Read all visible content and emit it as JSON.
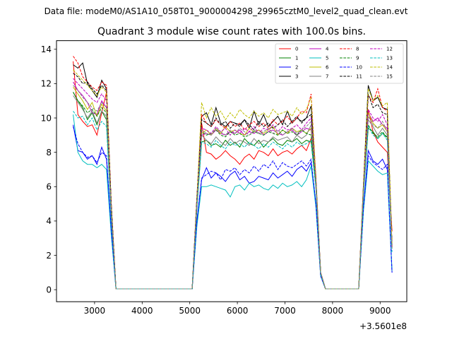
{
  "chart_data": {
    "type": "line",
    "suptitle": "Data file: modeM0/AS1A10_058T01_9000004298_29965cztM0_level2_quad_clean.evt",
    "title": "Quadrant 3 module wise count rates with 100.0s bins.",
    "xlabel": "",
    "ylabel": "",
    "x_offset_label": "+3.5601e8",
    "xlim": [
      2200,
      9560
    ],
    "ylim": [
      -0.7,
      14.5
    ],
    "xticks": [
      3000,
      4000,
      5000,
      6000,
      7000,
      8000,
      9000
    ],
    "yticks": [
      0,
      2,
      4,
      6,
      8,
      10,
      12,
      14
    ],
    "legend_location": "top-right",
    "x": [
      2550,
      2650,
      2750,
      2850,
      2950,
      3050,
      3150,
      3250,
      3350,
      3450,
      3550,
      5050,
      5150,
      5250,
      5350,
      5450,
      5550,
      5650,
      5750,
      5850,
      5950,
      6050,
      6150,
      6250,
      6350,
      6450,
      6550,
      6650,
      6750,
      6850,
      6950,
      7050,
      7150,
      7250,
      7350,
      7450,
      7550,
      7650,
      7750,
      7850,
      8550,
      8650,
      8750,
      8850,
      8950,
      9050,
      9150,
      9250
    ],
    "series": [
      {
        "name": "0",
        "color": "#ff0000",
        "dash": false,
        "values": [
          13.3,
          10.2,
          9.8,
          9.5,
          9.6,
          9.0,
          10.3,
          11.5,
          5.0,
          0.05,
          0.05,
          0.05,
          5.2,
          9.7,
          8.0,
          7.9,
          7.6,
          7.8,
          8.1,
          7.8,
          7.6,
          7.3,
          7.7,
          7.9,
          7.6,
          8.1,
          8.0,
          7.8,
          8.2,
          7.8,
          8.0,
          8.1,
          7.9,
          8.2,
          8.4,
          8.1,
          8.8,
          6.0,
          1.0,
          0.05,
          0.05,
          6.0,
          10.5,
          9.2,
          8.6,
          8.3,
          8.0,
          3.4
        ]
      },
      {
        "name": "1",
        "color": "#008000",
        "dash": false,
        "values": [
          11.5,
          11.0,
          10.6,
          9.9,
          10.3,
          9.6,
          10.4,
          9.9,
          4.3,
          0.05,
          0.05,
          0.05,
          4.8,
          8.6,
          8.7,
          8.4,
          8.5,
          8.3,
          8.7,
          8.4,
          8.6,
          8.3,
          8.8,
          8.5,
          8.4,
          8.7,
          8.3,
          8.6,
          8.8,
          8.5,
          8.4,
          8.7,
          8.6,
          8.8,
          8.5,
          8.7,
          8.6,
          6.0,
          1.0,
          0.05,
          0.05,
          5.6,
          9.4,
          9.2,
          8.8,
          9.1,
          8.9,
          2.7
        ]
      },
      {
        "name": "2",
        "color": "#0000ff",
        "dash": false,
        "values": [
          9.6,
          8.1,
          8.0,
          7.6,
          7.8,
          7.3,
          8.3,
          7.6,
          3.5,
          0.05,
          0.05,
          0.05,
          4.0,
          6.4,
          7.1,
          6.5,
          6.8,
          6.6,
          6.3,
          6.7,
          6.9,
          6.4,
          6.6,
          6.2,
          6.3,
          6.6,
          6.5,
          6.4,
          6.8,
          6.5,
          6.7,
          6.9,
          6.6,
          7.0,
          7.2,
          6.9,
          7.4,
          5.0,
          0.8,
          0.05,
          0.05,
          4.8,
          8.1,
          7.5,
          7.3,
          7.6,
          7.0,
          1.0
        ]
      },
      {
        "name": "3",
        "color": "#000000",
        "dash": false,
        "values": [
          13.1,
          12.9,
          13.2,
          12.0,
          11.6,
          11.2,
          12.2,
          11.7,
          5.0,
          0.05,
          0.05,
          0.05,
          5.4,
          10.1,
          10.3,
          9.6,
          10.6,
          9.7,
          9.5,
          9.8,
          9.7,
          9.6,
          9.9,
          9.4,
          10.4,
          9.6,
          10.2,
          9.5,
          9.8,
          10.1,
          9.6,
          10.4,
          9.7,
          10.0,
          9.8,
          10.0,
          10.7,
          6.5,
          1.0,
          0.05,
          0.05,
          6.2,
          11.9,
          11.0,
          11.2,
          10.6,
          10.5,
          2.5
        ]
      },
      {
        "name": "4",
        "color": "#bf00bf",
        "dash": false,
        "values": [
          12.1,
          11.6,
          11.3,
          10.9,
          10.3,
          10.2,
          11.0,
          10.6,
          4.6,
          0.05,
          0.05,
          0.05,
          5.0,
          9.0,
          9.1,
          9.0,
          9.3,
          9.1,
          9.0,
          9.2,
          9.1,
          9.3,
          9.0,
          9.2,
          9.1,
          9.3,
          9.0,
          9.2,
          9.3,
          9.1,
          9.0,
          9.2,
          9.3,
          9.0,
          9.2,
          9.4,
          9.3,
          6.2,
          1.0,
          0.05,
          0.05,
          5.9,
          10.3,
          9.8,
          10.0,
          9.6,
          9.4,
          2.6
        ]
      },
      {
        "name": "5",
        "color": "#00bfbf",
        "dash": false,
        "values": [
          10.2,
          8.0,
          7.5,
          7.3,
          7.3,
          7.1,
          7.3,
          7.0,
          3.2,
          0.05,
          0.05,
          0.05,
          3.7,
          6.0,
          6.0,
          6.1,
          6.0,
          5.9,
          5.8,
          5.4,
          6.0,
          6.1,
          5.8,
          6.2,
          6.0,
          6.1,
          5.9,
          5.8,
          6.1,
          5.9,
          6.2,
          6.0,
          6.1,
          6.3,
          6.0,
          6.4,
          7.2,
          4.8,
          0.8,
          0.05,
          0.05,
          4.6,
          7.5,
          7.2,
          6.9,
          6.7,
          6.8,
          1.1
        ]
      },
      {
        "name": "6",
        "color": "#bfbf00",
        "dash": false,
        "values": [
          11.8,
          11.4,
          11.0,
          10.5,
          10.9,
          10.1,
          10.8,
          10.4,
          4.6,
          0.05,
          0.05,
          0.05,
          5.0,
          9.1,
          9.3,
          9.0,
          9.4,
          9.1,
          9.5,
          9.2,
          9.3,
          9.1,
          9.0,
          9.4,
          9.2,
          9.3,
          9.1,
          9.3,
          9.5,
          9.0,
          9.3,
          9.1,
          9.4,
          9.2,
          9.3,
          9.1,
          9.4,
          6.3,
          1.0,
          0.05,
          0.05,
          5.9,
          10.3,
          9.7,
          9.4,
          9.6,
          9.2,
          2.4
        ]
      },
      {
        "name": "7",
        "color": "#808080",
        "dash": false,
        "values": [
          11.3,
          10.9,
          10.5,
          10.0,
          10.4,
          9.7,
          10.4,
          10.1,
          4.4,
          0.05,
          0.05,
          0.05,
          4.9,
          9.0,
          8.7,
          8.5,
          8.9,
          8.6,
          8.4,
          8.8,
          8.5,
          8.7,
          8.6,
          8.4,
          8.8,
          8.5,
          8.7,
          8.6,
          8.9,
          8.7,
          8.8,
          8.9,
          8.6,
          9.0,
          8.8,
          9.0,
          9.6,
          6.2,
          1.0,
          0.05,
          0.05,
          5.8,
          9.9,
          9.5,
          9.0,
          9.4,
          9.0,
          2.4
        ]
      },
      {
        "name": "8",
        "color": "#ff0000",
        "dash": true,
        "values": [
          13.6,
          13.2,
          12.4,
          12.1,
          11.8,
          11.6,
          12.1,
          11.9,
          5.0,
          0.05,
          0.05,
          0.05,
          5.4,
          10.2,
          9.7,
          9.5,
          9.9,
          9.6,
          9.4,
          9.8,
          9.5,
          9.7,
          9.3,
          9.6,
          9.8,
          9.5,
          9.7,
          9.4,
          9.9,
          9.6,
          9.8,
          10.1,
          9.7,
          10.0,
          10.4,
          10.3,
          11.4,
          6.6,
          1.0,
          0.05,
          0.05,
          6.1,
          11.3,
          10.9,
          11.7,
          10.6,
          10.4,
          2.5
        ]
      },
      {
        "name": "9",
        "color": "#008000",
        "dash": true,
        "values": [
          11.5,
          11.0,
          10.7,
          10.3,
          10.5,
          10.1,
          10.6,
          10.3,
          4.5,
          0.05,
          0.05,
          0.05,
          5.0,
          9.2,
          9.0,
          9.1,
          9.3,
          9.0,
          8.9,
          9.2,
          9.0,
          9.1,
          8.9,
          9.0,
          9.2,
          9.1,
          9.0,
          9.2,
          9.1,
          9.0,
          9.3,
          9.1,
          9.2,
          9.0,
          9.3,
          9.1,
          9.0,
          6.1,
          1.0,
          0.05,
          0.05,
          5.7,
          9.6,
          9.1,
          8.9,
          9.2,
          8.8,
          2.5
        ]
      },
      {
        "name": "10",
        "color": "#0000ff",
        "dash": true,
        "values": [
          9.5,
          8.5,
          8.0,
          7.7,
          7.8,
          7.4,
          8.0,
          7.8,
          3.5,
          0.05,
          0.05,
          0.05,
          4.0,
          6.5,
          6.7,
          6.9,
          6.8,
          6.4,
          7.0,
          6.9,
          7.1,
          6.7,
          7.0,
          6.8,
          7.2,
          6.9,
          7.3,
          7.1,
          7.5,
          7.0,
          7.4,
          7.2,
          7.1,
          7.3,
          7.5,
          7.2,
          7.6,
          5.0,
          0.8,
          0.05,
          0.05,
          4.8,
          7.8,
          7.4,
          7.2,
          7.0,
          7.3,
          1.0
        ]
      },
      {
        "name": "11",
        "color": "#000000",
        "dash": true,
        "values": [
          12.6,
          12.4,
          12.0,
          12.1,
          11.7,
          11.4,
          11.9,
          11.6,
          5.0,
          0.05,
          0.05,
          0.05,
          5.3,
          9.9,
          9.7,
          9.5,
          10.0,
          9.6,
          9.8,
          9.4,
          9.7,
          9.5,
          9.9,
          9.6,
          9.3,
          9.8,
          9.5,
          9.7,
          9.4,
          9.6,
          9.9,
          9.5,
          9.8,
          10.1,
          9.7,
          10.0,
          10.2,
          6.4,
          1.0,
          0.05,
          0.05,
          6.0,
          11.4,
          10.6,
          10.8,
          10.3,
          10.2,
          2.6
        ]
      },
      {
        "name": "12",
        "color": "#bf00bf",
        "dash": true,
        "values": [
          12.3,
          12.0,
          11.7,
          11.4,
          11.1,
          10.9,
          11.4,
          11.0,
          4.7,
          0.05,
          0.05,
          0.05,
          5.1,
          9.4,
          9.3,
          9.1,
          9.5,
          9.2,
          9.4,
          9.0,
          9.3,
          9.1,
          9.4,
          9.2,
          9.5,
          9.1,
          9.4,
          9.3,
          9.6,
          9.2,
          9.5,
          9.3,
          9.4,
          9.6,
          9.3,
          9.7,
          10.0,
          6.4,
          1.0,
          0.05,
          0.05,
          5.9,
          10.5,
          10.0,
          9.8,
          10.2,
          9.6,
          2.6
        ]
      },
      {
        "name": "13",
        "color": "#00bfbf",
        "dash": true,
        "values": [
          10.4,
          10.0,
          10.1,
          9.6,
          10.0,
          9.3,
          9.8,
          9.5,
          4.2,
          0.05,
          0.05,
          0.05,
          4.7,
          8.6,
          8.5,
          8.3,
          8.7,
          8.4,
          8.2,
          8.6,
          8.4,
          8.5,
          8.3,
          8.6,
          8.4,
          8.2,
          8.5,
          8.3,
          8.6,
          8.4,
          8.2,
          8.5,
          8.3,
          8.6,
          8.4,
          8.5,
          8.7,
          5.9,
          0.9,
          0.05,
          0.05,
          5.5,
          9.5,
          9.0,
          8.8,
          9.1,
          8.7,
          2.2
        ]
      },
      {
        "name": "14",
        "color": "#bfbf00",
        "dash": true,
        "values": [
          12.8,
          12.5,
          12.2,
          11.9,
          11.6,
          11.3,
          11.8,
          11.5,
          4.9,
          0.05,
          0.05,
          0.05,
          5.3,
          10.9,
          10.0,
          10.6,
          10.1,
          10.4,
          9.9,
          10.3,
          10.0,
          10.5,
          10.2,
          10.0,
          10.4,
          10.1,
          10.3,
          10.0,
          10.5,
          10.2,
          10.3,
          10.4,
          10.1,
          10.6,
          10.2,
          10.5,
          11.2,
          6.5,
          1.0,
          0.05,
          0.05,
          6.1,
          11.7,
          11.0,
          11.3,
          10.7,
          10.9,
          2.6
        ]
      },
      {
        "name": "15",
        "color": "#808080",
        "dash": true,
        "values": [
          11.9,
          11.6,
          11.2,
          10.9,
          10.6,
          10.4,
          10.9,
          10.6,
          4.6,
          0.05,
          0.05,
          0.05,
          5.0,
          9.3,
          9.1,
          9.0,
          9.4,
          9.2,
          9.0,
          9.3,
          9.1,
          9.4,
          9.2,
          9.0,
          9.3,
          9.1,
          9.2,
          9.4,
          9.1,
          9.3,
          9.0,
          9.2,
          9.4,
          9.1,
          9.3,
          9.5,
          9.8,
          6.3,
          1.0,
          0.05,
          0.05,
          5.8,
          10.1,
          9.6,
          9.4,
          9.8,
          9.2,
          2.4
        ]
      }
    ]
  }
}
